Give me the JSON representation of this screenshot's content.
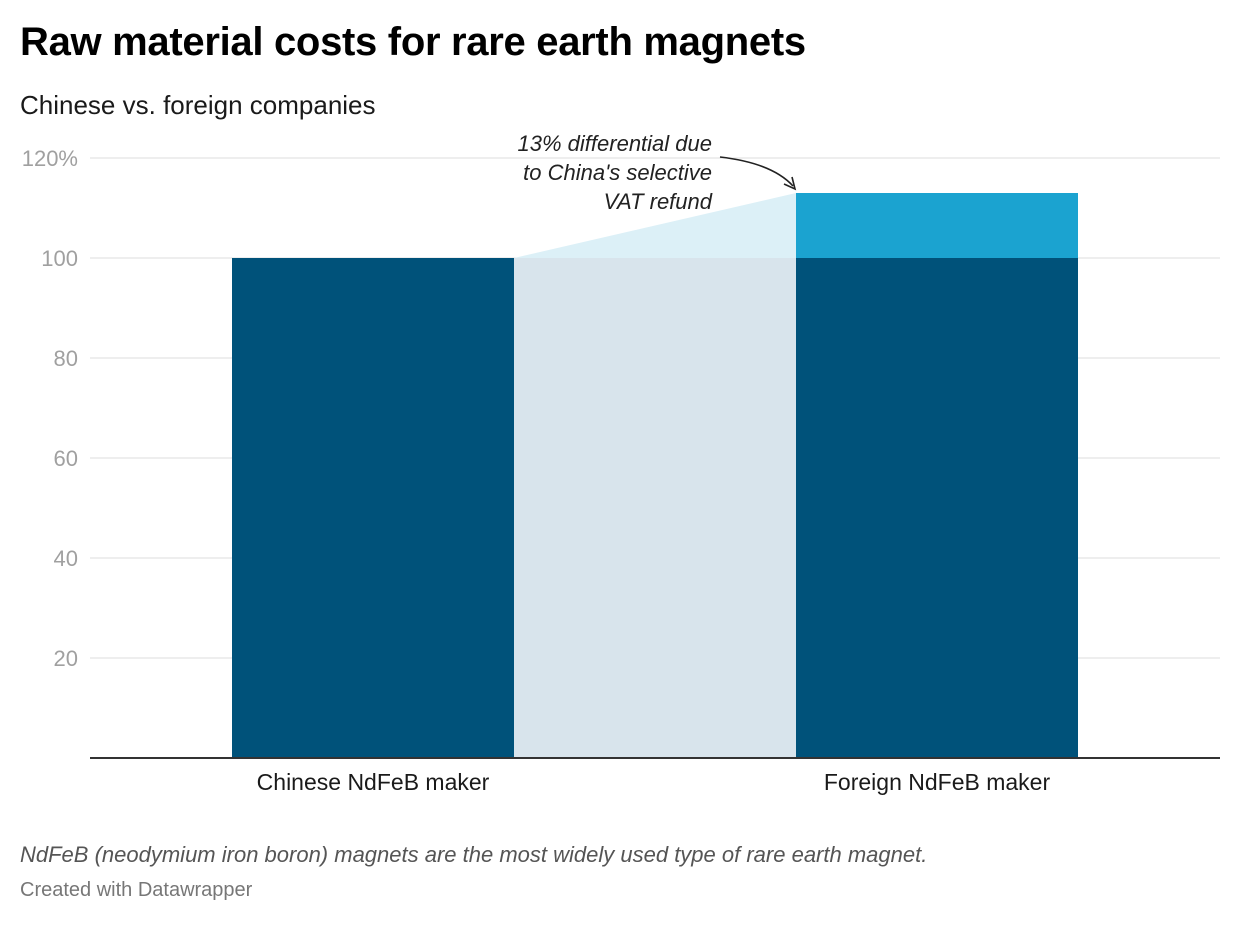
{
  "header": {
    "title": "Raw material costs for rare earth magnets",
    "subtitle": "Chinese vs. foreign companies"
  },
  "chart_data": {
    "type": "bar",
    "stacked": true,
    "categories": [
      "Chinese NdFeB maker",
      "Foreign NdFeB maker"
    ],
    "series": [
      {
        "values": [
          100,
          100
        ],
        "color": "#00527a"
      },
      {
        "values": [
          0,
          13
        ],
        "color": "#1ba3d0"
      }
    ],
    "ylim": [
      0,
      120
    ],
    "yticks": [
      20,
      40,
      60,
      80,
      100,
      120
    ],
    "ytick_labels": [
      "20",
      "40",
      "60",
      "80",
      "100",
      "120%"
    ],
    "grid": true,
    "connector_fill": "#d8e4ec",
    "differential_fill": "#dcf0f7",
    "annotation": {
      "lines": [
        "13% differential due",
        "to China's selective",
        "VAT refund"
      ]
    }
  },
  "footer": {
    "notes": "NdFeB (neodymium iron boron) magnets are the most widely used type of rare earth magnet.",
    "credit": "Created with Datawrapper"
  }
}
